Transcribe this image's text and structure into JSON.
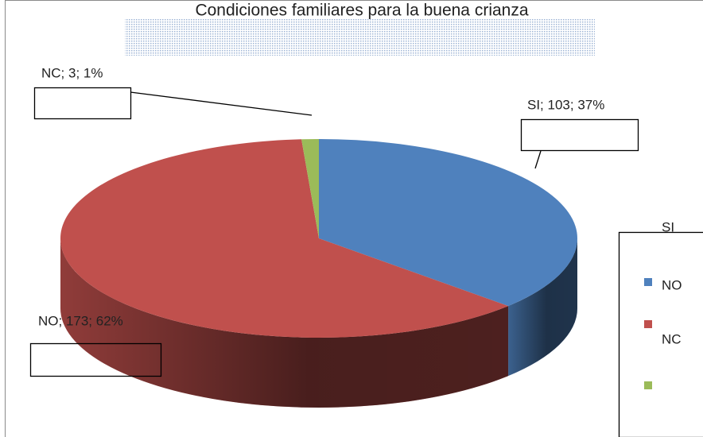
{
  "chart_data": {
    "type": "pie",
    "title": "Condiciones familiares para la buena crianza",
    "categories": [
      "SI",
      "NO",
      "NC"
    ],
    "values": [
      103,
      173,
      3
    ],
    "value_labels": [
      "SI; 103; 37%",
      "NO; 173; 62%",
      "NC; 3; 1%"
    ],
    "colors": [
      "#4f81bd",
      "#c0504d",
      "#9bbb59"
    ],
    "legend": "right"
  }
}
